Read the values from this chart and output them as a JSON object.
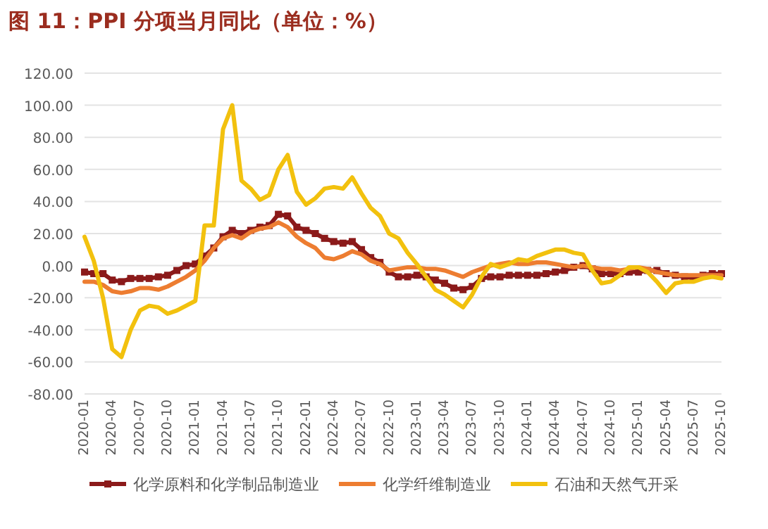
{
  "chart_data": {
    "type": "line",
    "title": "图 11：PPI 分项当月同比（单位：%）",
    "categories": [
      "2020-01",
      null,
      null,
      "2020-04",
      null,
      null,
      "2020-07",
      null,
      null,
      "2020-10",
      null,
      null,
      "2021-01",
      null,
      null,
      "2021-04",
      null,
      null,
      "2021-07",
      null,
      null,
      "2021-10",
      null,
      null,
      "2022-01",
      null,
      null,
      "2022-04",
      null,
      null,
      "2022-07",
      null,
      null,
      "2022-10",
      null,
      null,
      "2023-01",
      null,
      null,
      "2023-04",
      null,
      null,
      "2023-07",
      null,
      null,
      "2023-10",
      null,
      null,
      "2024-01",
      null,
      null,
      "2024-04",
      null,
      null,
      "2024-07",
      null,
      null,
      "2024-10",
      null,
      null,
      "2025-01",
      null,
      null,
      "2025-04",
      null,
      null,
      "2025-07",
      null,
      null,
      "2025-10"
    ],
    "series": [
      {
        "name": "化学原料和化学制品制造业",
        "color": "#8b1a1a",
        "marker": "square",
        "values": [
          -4,
          -5,
          -5,
          -9,
          -10,
          -8,
          -8,
          -8,
          -7,
          -6,
          -3,
          0,
          1,
          6,
          11,
          18,
          22,
          20,
          22,
          24,
          25,
          32,
          31,
          24,
          22,
          20,
          17,
          15,
          14,
          15,
          10,
          5,
          2,
          -4,
          -7,
          -7,
          -6,
          -7,
          -9,
          -11,
          -14,
          -15,
          -13,
          -8,
          -7,
          -7,
          -6,
          -6,
          -6,
          -6,
          -5,
          -4,
          -3,
          -1,
          0,
          -2,
          -5,
          -5,
          -5,
          -4,
          -4,
          -3,
          -3,
          -5,
          -6,
          -7,
          -8,
          -6,
          -5,
          -5
        ]
      },
      {
        "name": "化学纤维制造业",
        "color": "#ed7d31",
        "values": [
          -10,
          -10,
          -12,
          -16,
          -17,
          -16,
          -14,
          -14,
          -15,
          -13,
          -10,
          -7,
          -3,
          3,
          11,
          17,
          19,
          17,
          21,
          23,
          24,
          27,
          24,
          18,
          14,
          11,
          5,
          4,
          6,
          9,
          7,
          3,
          1,
          -3,
          -2,
          -1,
          -1,
          -2,
          -2,
          -3,
          -5,
          -7,
          -4,
          -2,
          0,
          1,
          2,
          1,
          1,
          2,
          2,
          1,
          0,
          -1,
          0,
          -1,
          -2,
          -2,
          -3,
          -2,
          -1,
          -2,
          -4,
          -5,
          -6,
          -6,
          -6,
          -6,
          -6,
          -6
        ]
      },
      {
        "name": "石油和天然气开采",
        "color": "#f2c10e",
        "values": [
          18,
          3,
          -20,
          -52,
          -57,
          -40,
          -28,
          -25,
          -26,
          -30,
          -28,
          -25,
          -22,
          25,
          25,
          85,
          100,
          53,
          48,
          41,
          44,
          60,
          69,
          46,
          38,
          42,
          48,
          49,
          48,
          55,
          45,
          36,
          31,
          20,
          17,
          8,
          1,
          -7,
          -15,
          -18,
          -22,
          -26,
          -18,
          -7,
          1,
          -1,
          1,
          4,
          3,
          6,
          8,
          10,
          10,
          8,
          7,
          -3,
          -11,
          -10,
          -6,
          -1,
          -1,
          -4,
          -10,
          -17,
          -11,
          -10,
          -10,
          -8,
          -7,
          -8
        ]
      }
    ],
    "ylim": [
      -80,
      120
    ],
    "yticks": [
      {
        "value": -80,
        "label": "-80.00"
      },
      {
        "value": -60,
        "label": "-60.00"
      },
      {
        "value": -40,
        "label": "-40.00"
      },
      {
        "value": -20,
        "label": "-20.00"
      },
      {
        "value": 0,
        "label": "0.00"
      },
      {
        "value": 20,
        "label": "20.00"
      },
      {
        "value": 40,
        "label": "40.00"
      },
      {
        "value": 60,
        "label": "60.00"
      },
      {
        "value": 80,
        "label": "80.00"
      },
      {
        "value": 100,
        "label": "100.00"
      },
      {
        "value": 120,
        "label": "120.00"
      }
    ],
    "grid": "y",
    "legend": "bottom",
    "line_style": "solid"
  }
}
